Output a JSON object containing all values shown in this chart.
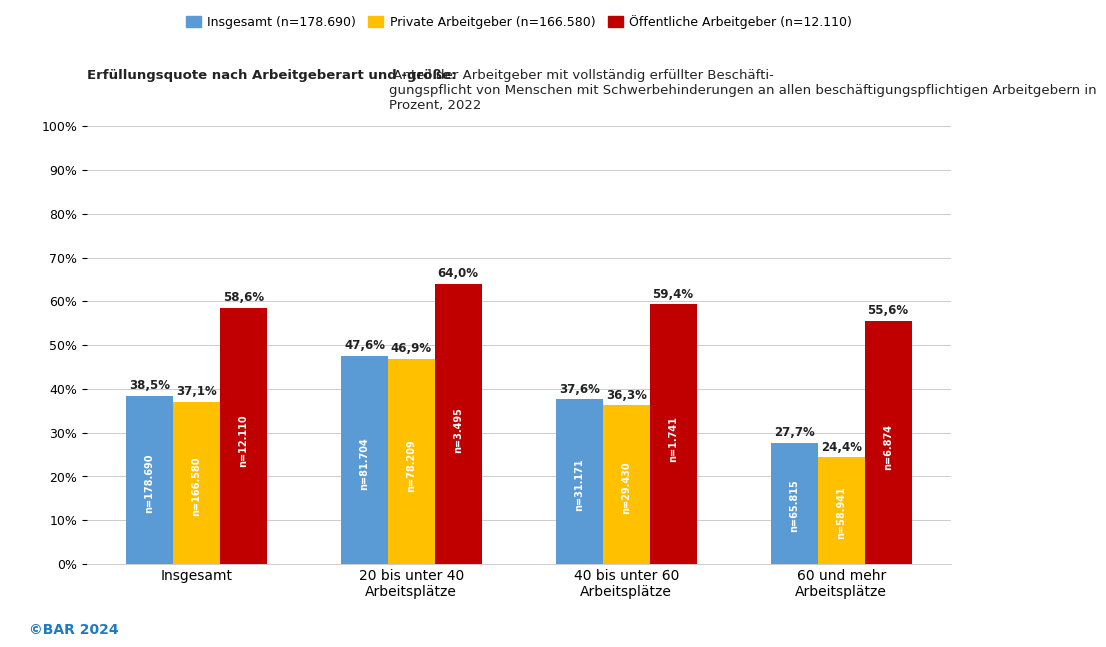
{
  "categories": [
    "Insgesamt",
    "20 bis unter 40\nArbeitsplätze",
    "40 bis unter 60\nArbeitsplätze",
    "60 und mehr\nArbeitsplätze"
  ],
  "series": {
    "Insgesamt (n=178.690)": [
      38.5,
      47.6,
      37.6,
      27.7
    ],
    "Private Arbeitgeber (n=166.580)": [
      37.1,
      46.9,
      36.3,
      24.4
    ],
    "Öffentliche Arbeitgeber (n=12.110)": [
      58.6,
      64.0,
      59.4,
      55.6
    ]
  },
  "n_labels": {
    "Insgesamt (n=178.690)": [
      "n=178.690",
      "n=81.704",
      "n=31.171",
      "n=65.815"
    ],
    "Private Arbeitgeber (n=166.580)": [
      "n=166.580",
      "n=78.209",
      "n=29.430",
      "n=58.941"
    ],
    "Öffentliche Arbeitgeber (n=12.110)": [
      "n=12.110",
      "n=3.495",
      "n=1.741",
      "n=6.874"
    ]
  },
  "colors": {
    "Insgesamt (n=178.690)": "#5b9bd5",
    "Private Arbeitgeber (n=166.580)": "#ffc000",
    "Öffentliche Arbeitgeber (n=12.110)": "#c00000"
  },
  "title_bold": "Erfüllungsquote nach Arbeitgeberart und -größe:",
  "title_normal": " Anteil der Arbeitgeber mit vollständig erfüllter Beschäfti-\ngungspflicht von Menschen mit Schwerbehinderungen an allen beschäftigungspflichtigen Arbeitgebern in\nProzent, 2022",
  "ylabel_ticks": [
    0,
    10,
    20,
    30,
    40,
    50,
    60,
    70,
    80,
    90,
    100
  ],
  "ylim": [
    0,
    100
  ],
  "background_color": "#ffffff",
  "top_bar_color": "#1f7abf",
  "bottom_bar_color": "#1f7abf",
  "footer_text": "©BAR 2024",
  "footer_color": "#1f7abf"
}
